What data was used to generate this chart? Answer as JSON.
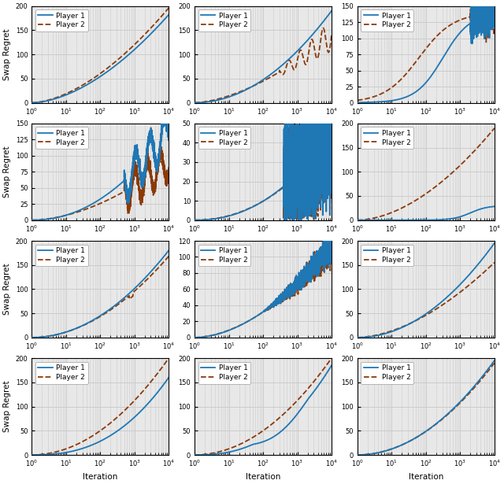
{
  "figsize": [
    6.4,
    6.15
  ],
  "dpi": 100,
  "nrows": 4,
  "ncols": 3,
  "player1_color": "#1f77b4",
  "player2_color": "#8B3A08",
  "player1_lw": 1.3,
  "player2_lw": 1.3,
  "xlabel": "Iteration",
  "ylabel": "Swap Regret",
  "grid_color": "#cccccc",
  "grid_lw": 0.7,
  "background_color": "#e8e8e8",
  "legend_fontsize": 6.5,
  "tick_fontsize": 6.0,
  "label_fontsize": 7.5,
  "subplots": [
    {
      "row": 0,
      "col": 0,
      "ylim": [
        0,
        200
      ],
      "yticks": [
        0,
        50,
        100,
        150,
        200
      ]
    },
    {
      "row": 0,
      "col": 1,
      "ylim": [
        0,
        200
      ],
      "yticks": [
        0,
        50,
        100,
        150,
        200
      ]
    },
    {
      "row": 0,
      "col": 2,
      "ylim": [
        0,
        150
      ],
      "yticks": [
        0,
        25,
        50,
        75,
        100,
        125,
        150
      ]
    },
    {
      "row": 1,
      "col": 0,
      "ylim": [
        0,
        150
      ],
      "yticks": [
        0,
        25,
        50,
        75,
        100,
        125,
        150
      ]
    },
    {
      "row": 1,
      "col": 1,
      "ylim": [
        0,
        50
      ],
      "yticks": [
        0,
        10,
        20,
        30,
        40,
        50
      ]
    },
    {
      "row": 1,
      "col": 2,
      "ylim": [
        0,
        200
      ],
      "yticks": [
        0,
        50,
        100,
        150,
        200
      ]
    },
    {
      "row": 2,
      "col": 0,
      "ylim": [
        0,
        200
      ],
      "yticks": [
        0,
        50,
        100,
        150,
        200
      ]
    },
    {
      "row": 2,
      "col": 1,
      "ylim": [
        0,
        120
      ],
      "yticks": [
        0,
        20,
        40,
        60,
        80,
        100,
        120
      ]
    },
    {
      "row": 2,
      "col": 2,
      "ylim": [
        0,
        200
      ],
      "yticks": [
        0,
        50,
        100,
        150,
        200
      ]
    },
    {
      "row": 3,
      "col": 0,
      "ylim": [
        0,
        200
      ],
      "yticks": [
        0,
        50,
        100,
        150,
        200
      ]
    },
    {
      "row": 3,
      "col": 1,
      "ylim": [
        0,
        200
      ],
      "yticks": [
        0,
        50,
        100,
        150,
        200
      ]
    },
    {
      "row": 3,
      "col": 2,
      "ylim": [
        0,
        200
      ],
      "yticks": [
        0,
        50,
        100,
        150,
        200
      ]
    }
  ]
}
